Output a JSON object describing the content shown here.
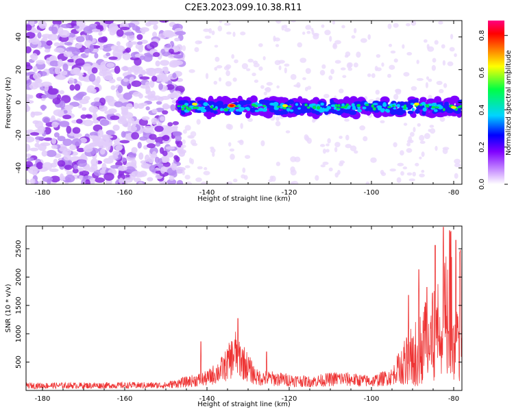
{
  "title": "C2E3.2023.099.10.38.R11",
  "chart_data": [
    {
      "type": "heatmap",
      "xlabel": "Height of straight line (km)",
      "ylabel": "Frequency (Hz)",
      "xlim": [
        -184,
        -78
      ],
      "ylim": [
        -50,
        50
      ],
      "xticks": [
        -180,
        -160,
        -140,
        -120,
        -100,
        -80
      ],
      "yticks": [
        -40,
        -20,
        0,
        20,
        40
      ],
      "colorbar": {
        "label": "Normalized spectral amplitude",
        "range": [
          0,
          0.88
        ],
        "ticks": [
          0.0,
          0.2,
          0.4,
          0.6,
          0.8
        ],
        "colors": [
          "#ffffff",
          "#cc99ff",
          "#7f00ff",
          "#0000ff",
          "#00d4ff",
          "#00ff44",
          "#ffff00",
          "#ff8000",
          "#ff0000",
          "#ff0080"
        ]
      },
      "features": {
        "noise_region_x": [
          -184,
          -146
        ],
        "band_x": [
          -147,
          -78
        ],
        "band_center_freq": -3,
        "band_halfwidth_freq": 5,
        "peak": {
          "x": -134,
          "y": -2,
          "value": 0.85
        }
      }
    },
    {
      "type": "line",
      "xlabel": "Height of straight line (km)",
      "ylabel": "SNR (10 * v/v)",
      "xlim": [
        -184,
        -78
      ],
      "ylim": [
        0,
        2900
      ],
      "xticks": [
        -180,
        -160,
        -140,
        -120,
        -100,
        -80
      ],
      "yticks": [
        500,
        1000,
        1500,
        2000,
        2500
      ],
      "color": "#ee3333",
      "envelope": [
        {
          "x": -184,
          "y": 120
        },
        {
          "x": -150,
          "y": 130
        },
        {
          "x": -146,
          "y": 200
        },
        {
          "x": -140,
          "y": 300
        },
        {
          "x": -136,
          "y": 550
        },
        {
          "x": -133,
          "y": 950
        },
        {
          "x": -131,
          "y": 700
        },
        {
          "x": -128,
          "y": 330
        },
        {
          "x": -115,
          "y": 220
        },
        {
          "x": -108,
          "y": 300
        },
        {
          "x": -100,
          "y": 230
        },
        {
          "x": -95,
          "y": 350
        },
        {
          "x": -92,
          "y": 800
        },
        {
          "x": -89,
          "y": 1300
        },
        {
          "x": -86,
          "y": 1700
        },
        {
          "x": -83,
          "y": 2300
        },
        {
          "x": -80,
          "y": 2600
        },
        {
          "x": -78,
          "y": 2400
        }
      ],
      "peaks": [
        {
          "x": -141.5,
          "y": 860
        },
        {
          "x": -132.5,
          "y": 1270
        },
        {
          "x": -125.5,
          "y": 680
        },
        {
          "x": -91,
          "y": 1680
        },
        {
          "x": -88.5,
          "y": 2130
        },
        {
          "x": -86.5,
          "y": 1820
        },
        {
          "x": -84.5,
          "y": 2560
        },
        {
          "x": -82.5,
          "y": 2880
        },
        {
          "x": -81,
          "y": 2820
        },
        {
          "x": -79.5,
          "y": 2650
        },
        {
          "x": -78.5,
          "y": 2440
        }
      ]
    }
  ]
}
